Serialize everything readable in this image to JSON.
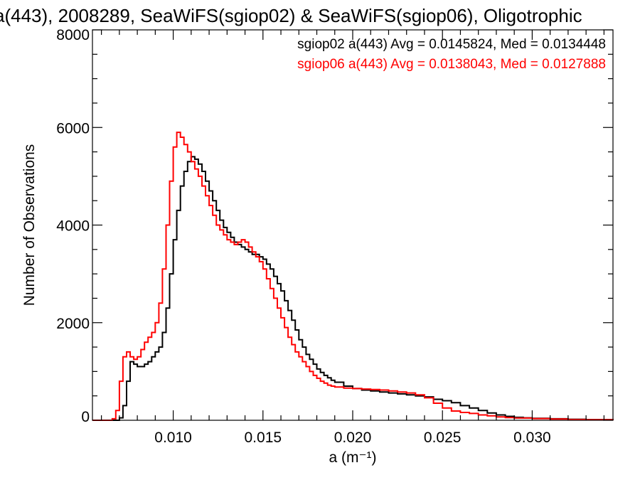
{
  "chart_data": {
    "type": "line",
    "title": "a(443), 2008289, SeaWiFS(sgiop02) & SeaWiFS(sgiop06), Oligotrophic",
    "xlabel": "a (m⁻¹)",
    "ylabel": "Number of Observations",
    "xlim": [
      0.0055,
      0.0345
    ],
    "ylim": [
      0,
      8000
    ],
    "x_ticks": [
      0.01,
      0.015,
      0.02,
      0.025,
      0.03
    ],
    "x_tick_labels": [
      "0.010",
      "0.015",
      "0.020",
      "0.025",
      "0.030"
    ],
    "y_ticks": [
      0,
      2000,
      4000,
      6000,
      8000
    ],
    "y_tick_labels": [
      "0",
      "2000",
      "4000",
      "6000",
      "8000"
    ],
    "grid": false,
    "legend_placement": "top-right",
    "series": [
      {
        "name": "sgiop02 a(443) Avg = 0.0145824, Med = 0.0134448",
        "color": "#000000",
        "step": true,
        "x": [
          0.0055,
          0.007,
          0.0072,
          0.0074,
          0.0076,
          0.0078,
          0.008,
          0.0082,
          0.0084,
          0.0086,
          0.0088,
          0.009,
          0.0092,
          0.0094,
          0.0096,
          0.0098,
          0.01,
          0.0102,
          0.0104,
          0.0106,
          0.0108,
          0.011,
          0.0112,
          0.0114,
          0.0116,
          0.0118,
          0.012,
          0.0122,
          0.0124,
          0.0126,
          0.0128,
          0.013,
          0.0132,
          0.0134,
          0.0136,
          0.0138,
          0.014,
          0.0142,
          0.0144,
          0.0146,
          0.0148,
          0.015,
          0.0152,
          0.0154,
          0.0156,
          0.0158,
          0.016,
          0.0162,
          0.0164,
          0.0166,
          0.0168,
          0.017,
          0.0172,
          0.0174,
          0.0176,
          0.0178,
          0.018,
          0.0182,
          0.0184,
          0.0186,
          0.0188,
          0.019,
          0.0195,
          0.02,
          0.0205,
          0.021,
          0.0215,
          0.022,
          0.0225,
          0.023,
          0.0235,
          0.024,
          0.0245,
          0.025,
          0.0255,
          0.026,
          0.0265,
          0.027,
          0.0275,
          0.028,
          0.0285,
          0.029,
          0.0295,
          0.03,
          0.031,
          0.032,
          0.033,
          0.0345
        ],
        "values": [
          0,
          50,
          300,
          800,
          1200,
          1150,
          1100,
          1100,
          1150,
          1200,
          1300,
          1400,
          1500,
          1800,
          2300,
          3000,
          3700,
          4300,
          4800,
          5100,
          5300,
          5400,
          5350,
          5250,
          5100,
          4900,
          4700,
          4500,
          4300,
          4100,
          3950,
          3850,
          3750,
          3650,
          3600,
          3550,
          3500,
          3450,
          3400,
          3400,
          3350,
          3300,
          3200,
          3100,
          2950,
          2800,
          2650,
          2450,
          2250,
          2050,
          1850,
          1650,
          1500,
          1350,
          1250,
          1150,
          1050,
          980,
          920,
          870,
          820,
          780,
          700,
          650,
          620,
          600,
          580,
          560,
          540,
          520,
          500,
          480,
          430,
          400,
          360,
          300,
          250,
          200,
          150,
          110,
          80,
          60,
          50,
          40,
          30,
          20,
          15,
          5
        ]
      },
      {
        "name": "sgiop06 a(443) Avg = 0.0138043, Med = 0.0127888",
        "color": "#ff0000",
        "step": true,
        "x": [
          0.0055,
          0.0066,
          0.0068,
          0.007,
          0.0072,
          0.0074,
          0.0076,
          0.0078,
          0.008,
          0.0082,
          0.0084,
          0.0086,
          0.0088,
          0.009,
          0.0092,
          0.0094,
          0.0096,
          0.0098,
          0.01,
          0.0102,
          0.0104,
          0.0106,
          0.0108,
          0.011,
          0.0112,
          0.0114,
          0.0116,
          0.0118,
          0.012,
          0.0122,
          0.0124,
          0.0126,
          0.0128,
          0.013,
          0.0132,
          0.0134,
          0.0136,
          0.0138,
          0.014,
          0.0142,
          0.0144,
          0.0146,
          0.0148,
          0.015,
          0.0152,
          0.0154,
          0.0156,
          0.0158,
          0.016,
          0.0162,
          0.0164,
          0.0166,
          0.0168,
          0.017,
          0.0172,
          0.0174,
          0.0176,
          0.0178,
          0.018,
          0.0182,
          0.0184,
          0.0186,
          0.0188,
          0.019,
          0.0195,
          0.02,
          0.0205,
          0.021,
          0.0215,
          0.022,
          0.0225,
          0.023,
          0.0235,
          0.024,
          0.0245,
          0.025,
          0.0255,
          0.026,
          0.0265,
          0.027,
          0.0275,
          0.028,
          0.0285,
          0.029,
          0.03,
          0.031,
          0.032,
          0.033,
          0.0345
        ],
        "values": [
          0,
          30,
          200,
          800,
          1300,
          1400,
          1300,
          1250,
          1300,
          1450,
          1600,
          1700,
          1800,
          2000,
          2400,
          3100,
          4000,
          4900,
          5600,
          5900,
          5800,
          5650,
          5500,
          5300,
          5150,
          5000,
          4800,
          4600,
          4400,
          4200,
          4000,
          3900,
          3800,
          3700,
          3650,
          3600,
          3650,
          3700,
          3650,
          3550,
          3450,
          3350,
          3250,
          3100,
          2900,
          2700,
          2500,
          2300,
          2100,
          1900,
          1700,
          1550,
          1400,
          1300,
          1200,
          1100,
          1000,
          920,
          860,
          800,
          760,
          720,
          700,
          680,
          660,
          650,
          640,
          630,
          620,
          600,
          580,
          560,
          520,
          460,
          350,
          250,
          190,
          160,
          140,
          110,
          90,
          70,
          55,
          45,
          35,
          25,
          15,
          10,
          5
        ]
      }
    ]
  }
}
